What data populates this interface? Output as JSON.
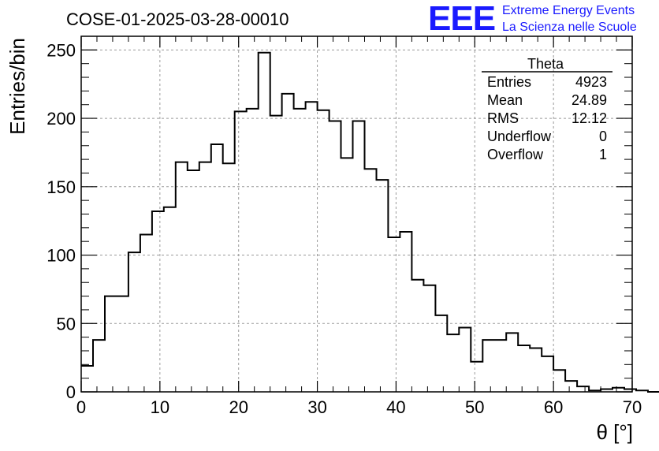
{
  "chart_data": {
    "type": "bar",
    "style": "step-histogram",
    "title": "COSE-01-2025-03-28-00010",
    "xlabel": "θ [°]",
    "ylabel": "Entries/bin",
    "xlim": [
      0,
      70
    ],
    "ylim": [
      0,
      260
    ],
    "grid": true,
    "x_ticks": [
      "0",
      "10",
      "20",
      "30",
      "40",
      "50",
      "60",
      "70"
    ],
    "y_ticks": [
      "0",
      "50",
      "100",
      "150",
      "200",
      "250"
    ],
    "bin_width": 1.5,
    "bin_edges_start": 0,
    "values": [
      19,
      38,
      70,
      70,
      102,
      115,
      132,
      135,
      168,
      162,
      168,
      181,
      167,
      205,
      207,
      248,
      202,
      218,
      207,
      212,
      206,
      198,
      171,
      198,
      163,
      155,
      113,
      117,
      82,
      78,
      56,
      42,
      47,
      22,
      38,
      38,
      43,
      34,
      32,
      26,
      16,
      8,
      4,
      1,
      2,
      3,
      2,
      1,
      0,
      1
    ],
    "stats": {
      "title": "Theta",
      "rows": [
        {
          "label": "Entries",
          "value": "4923"
        },
        {
          "label": "Mean",
          "value": "24.89"
        },
        {
          "label": "RMS",
          "value": "12.12"
        },
        {
          "label": "Underflow",
          "value": "0"
        },
        {
          "label": "Overflow",
          "value": "1"
        }
      ]
    }
  },
  "logo": {
    "big": "EEE",
    "line1": "Extreme Energy Events",
    "line2": "La Scienza nelle Scuole",
    "color": "#1a1aff"
  }
}
